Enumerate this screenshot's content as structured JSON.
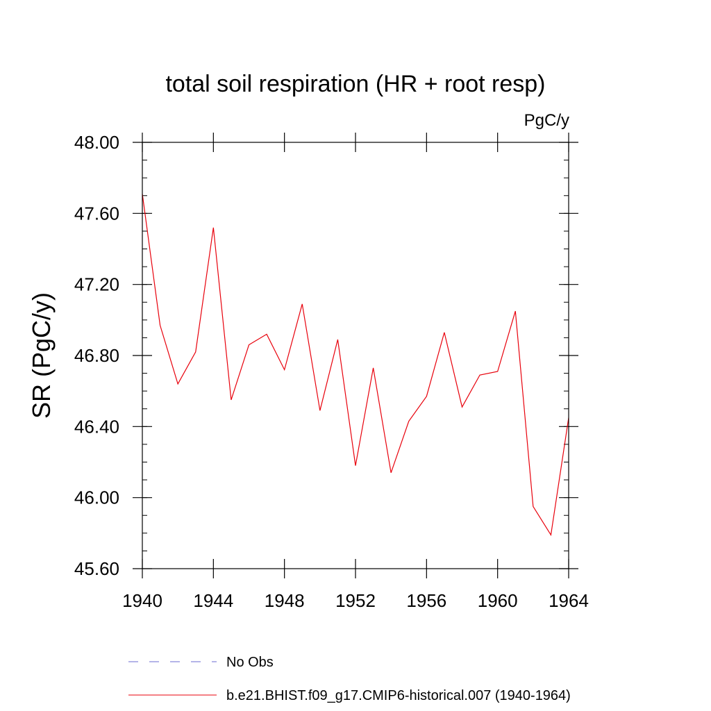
{
  "chart_data": {
    "type": "line",
    "title": "total soil respiration (HR + root resp)",
    "units": "PgC/y",
    "ylabel": "SR  (PgC/y)",
    "xlabel": "",
    "xlim": [
      1940,
      1964
    ],
    "ylim": [
      45.6,
      48.0
    ],
    "x_ticks": [
      1940,
      1944,
      1948,
      1952,
      1956,
      1960,
      1964
    ],
    "x_tick_labels": [
      "1940",
      "1944",
      "1948",
      "1952",
      "1956",
      "1960",
      "1964"
    ],
    "y_ticks": [
      45.6,
      46.0,
      46.4,
      46.8,
      47.2,
      47.6,
      48.0
    ],
    "y_tick_labels": [
      "45.60",
      "46.00",
      "46.40",
      "46.80",
      "47.20",
      "47.60",
      "48.00"
    ],
    "grid": false,
    "legend_position": "bottom",
    "legend": [
      {
        "label": "No Obs",
        "color": "#6a6ad0",
        "style": "dashed"
      },
      {
        "label": "b.e21.BHIST.f09_g17.CMIP6-historical.007 (1940-1964)",
        "color": "#e8000b",
        "style": "solid"
      }
    ],
    "series": [
      {
        "color": "#e8000b",
        "x": [
          1940,
          1941,
          1942,
          1943,
          1944,
          1945,
          1946,
          1947,
          1948,
          1949,
          1950,
          1951,
          1952,
          1953,
          1954,
          1955,
          1956,
          1957,
          1958,
          1959,
          1960,
          1961,
          1962,
          1963,
          1964
        ],
        "y": [
          47.71,
          46.97,
          46.64,
          46.82,
          47.52,
          46.55,
          46.86,
          46.92,
          46.72,
          47.09,
          46.49,
          46.89,
          46.18,
          46.73,
          46.14,
          46.43,
          46.57,
          46.93,
          46.51,
          46.69,
          46.71,
          47.05,
          45.95,
          45.79,
          46.45
        ]
      }
    ]
  }
}
